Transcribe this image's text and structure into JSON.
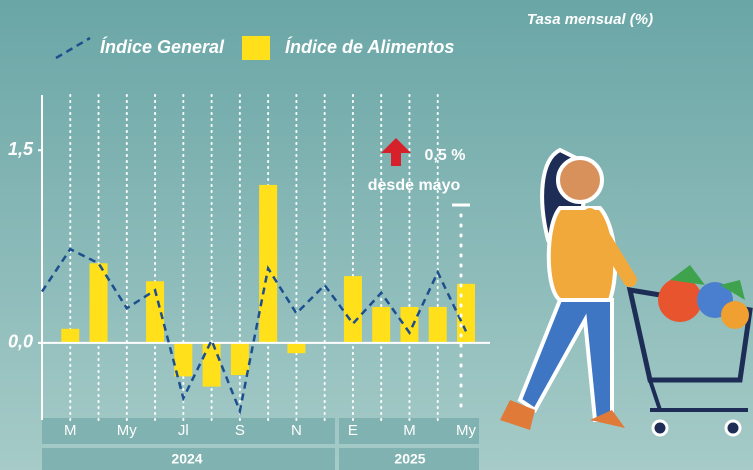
{
  "chart_data": {
    "type": "bar-line",
    "subtitle": "Tasa mensual (%)",
    "categories": [
      null,
      "M",
      null,
      "My",
      null,
      "Jl",
      null,
      "S",
      null,
      "N",
      null,
      "E",
      null,
      "M",
      null,
      "My"
    ],
    "years": [
      "2024",
      "2025"
    ],
    "series": [
      {
        "name": "Índice General",
        "type": "line",
        "color": "#1d4f8f",
        "values": [
          0.4,
          0.73,
          0.62,
          0.27,
          0.41,
          -0.43,
          0.02,
          -0.53,
          0.58,
          0.23,
          0.45,
          0.15,
          0.39,
          0.08,
          0.55,
          0.09
        ]
      },
      {
        "name": "Índice de Alimentos",
        "type": "bar",
        "color": "#ffe01b",
        "values": [
          null,
          0.11,
          0.62,
          null,
          0.48,
          -0.26,
          -0.34,
          -0.25,
          1.23,
          -0.08,
          null,
          0.52,
          0.28,
          0.28,
          0.28,
          0.46
        ]
      }
    ],
    "annotation": {
      "value": "0,5 %",
      "text": "desde mayo"
    },
    "ylim": [
      -0.6,
      1.93
    ],
    "yticks": [
      {
        "value": 0,
        "label": "0,0"
      },
      {
        "value": 1.5,
        "label": "1,5"
      }
    ]
  }
}
